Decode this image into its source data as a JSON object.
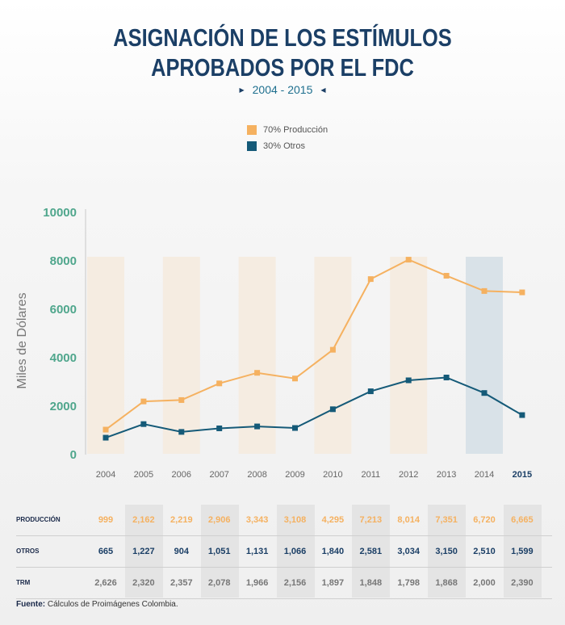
{
  "title_line1": "ASIGNACIÓN DE LOS ESTÍMULOS",
  "title_line2": "APROBADOS POR EL FDC",
  "subtitle": "2004 - 2015",
  "colors": {
    "produccion": "#f5b160",
    "otros": "#155a78",
    "title": "#1b3f66",
    "axis_labels": "#4fa68c"
  },
  "legend": [
    {
      "label": "70% Producción",
      "color": "#f5b160"
    },
    {
      "label": "30% Otros",
      "color": "#155a78"
    }
  ],
  "chart_data": {
    "type": "line",
    "ylabel": "Miles de Dólares",
    "ylim": [
      0,
      10000
    ],
    "yticks": [
      "0",
      "2000",
      "4000",
      "6000",
      "8000",
      "10000"
    ],
    "categories": [
      "2004",
      "2005",
      "2006",
      "2007",
      "2008",
      "2009",
      "2010",
      "2011",
      "2012",
      "2013",
      "2014",
      "2015"
    ],
    "series": [
      {
        "name": "70% Producción",
        "values": [
          999,
          2162,
          2219,
          2906,
          3343,
          3108,
          4295,
          7213,
          8014,
          7351,
          6720,
          6665
        ]
      },
      {
        "name": "30% Otros",
        "values": [
          665,
          1227,
          904,
          1051,
          1131,
          1066,
          1840,
          2581,
          3034,
          3150,
          2510,
          1599
        ]
      }
    ],
    "highlight_year": "2015"
  },
  "table": {
    "rows": [
      {
        "label": "PRODUCCIÓN",
        "values": [
          "999",
          "2,162",
          "2,219",
          "2,906",
          "3,343",
          "3,108",
          "4,295",
          "7,213",
          "8,014",
          "7,351",
          "6,720",
          "6,665"
        ]
      },
      {
        "label": "OTROS",
        "values": [
          "665",
          "1,227",
          "904",
          "1,051",
          "1,131",
          "1,066",
          "1,840",
          "2,581",
          "3,034",
          "3,150",
          "2,510",
          "1,599"
        ]
      },
      {
        "label": "TRM",
        "values": [
          "2,626",
          "2,320",
          "2,357",
          "2,078",
          "1,966",
          "2,156",
          "1,897",
          "1,848",
          "1,798",
          "1,868",
          "2,000",
          "2,390"
        ]
      }
    ]
  },
  "footer": {
    "label": "Fuente:",
    "text": " Cálculos de Proimágenes Colombia."
  }
}
